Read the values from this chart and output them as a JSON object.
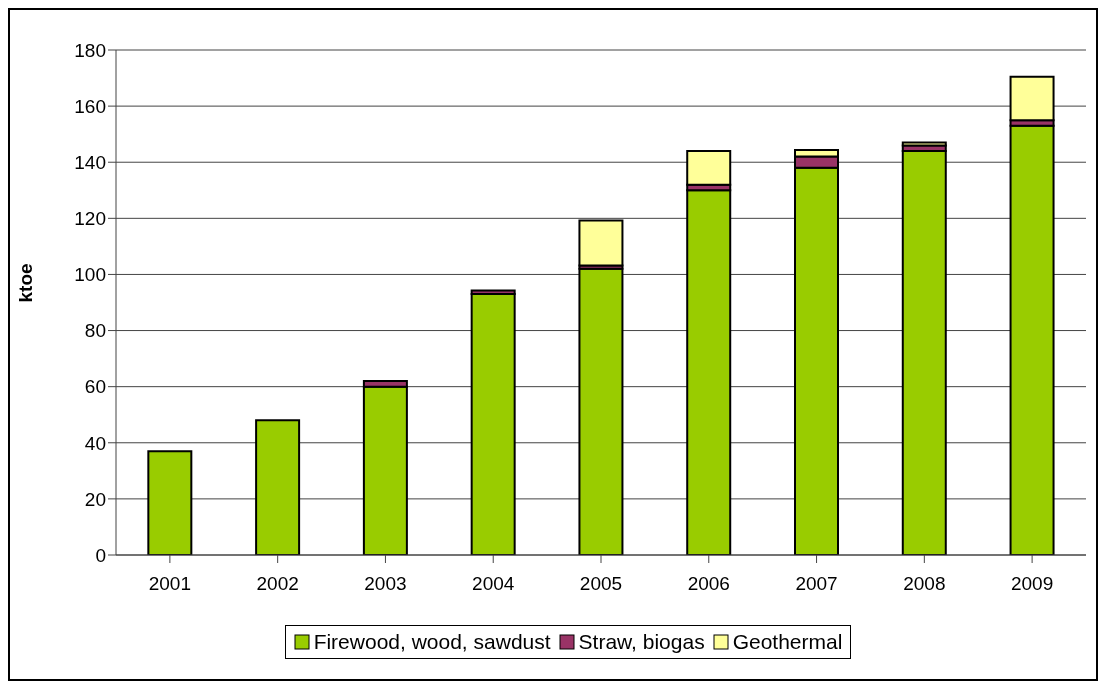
{
  "chart_data": {
    "type": "bar",
    "stacked": true,
    "ylabel": "ktoe",
    "categories": [
      "2001",
      "2002",
      "2003",
      "2004",
      "2005",
      "2006",
      "2007",
      "2008",
      "2009"
    ],
    "series": [
      {
        "name": "Firewood, wood, sawdust",
        "color": "#99cc00",
        "values": [
          37,
          48,
          60,
          93,
          102,
          130,
          138,
          144,
          153
        ]
      },
      {
        "name": "Straw, biogas",
        "color": "#993366",
        "values": [
          0,
          0,
          2,
          1.3,
          1.2,
          2,
          4,
          2,
          2
        ]
      },
      {
        "name": "Geothermal",
        "color": "#ffff99",
        "values": [
          0,
          0,
          0,
          0,
          16,
          12,
          2.4,
          1,
          15.5
        ]
      }
    ],
    "ylim": [
      0,
      180
    ],
    "yticks": [
      0,
      20,
      40,
      60,
      80,
      100,
      120,
      140,
      160,
      180
    ],
    "grid": "y",
    "legend": "bottom"
  }
}
